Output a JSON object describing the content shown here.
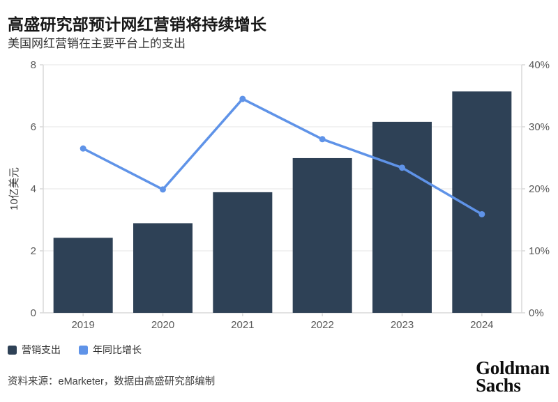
{
  "header": {
    "title": "高盛研究部预计网红营销将持续增长",
    "subtitle": "美国网红营销在主要平台上的支出"
  },
  "chart_data": {
    "type": "bar+line combo",
    "categories": [
      "2019",
      "2020",
      "2021",
      "2022",
      "2023",
      "2024"
    ],
    "series": [
      {
        "name": "营销支出",
        "type": "bar",
        "axis": "left",
        "color": "#2e4156",
        "values": [
          2.42,
          2.89,
          3.89,
          4.99,
          6.16,
          7.14
        ]
      },
      {
        "name": "年同比增长",
        "type": "line",
        "axis": "right",
        "color": "#5f93e8",
        "values": [
          26.5,
          19.9,
          34.5,
          28.0,
          23.4,
          15.9
        ]
      }
    ],
    "left_axis": {
      "label": "10亿美元",
      "min": 0,
      "max": 8,
      "tick_values": [
        0,
        2,
        4,
        6,
        8
      ],
      "tick_labels": [
        "0",
        "2",
        "4",
        "6",
        "8"
      ]
    },
    "right_axis": {
      "label": "",
      "min": 0,
      "max": 40,
      "tick_values": [
        0,
        10,
        20,
        30,
        40
      ],
      "tick_labels": [
        "0%",
        "10%",
        "20%",
        "30%",
        "40%"
      ]
    },
    "grid": true,
    "legend_position": "bottom-left"
  },
  "footer": {
    "source": "资料来源：eMarketer，数据由高盛研究部编制",
    "logo_line1": "Goldman",
    "logo_line2": "Sachs"
  },
  "colors": {
    "bar": "#2e4156",
    "line": "#5f93e8",
    "gridline": "#e4e4e4",
    "axis_line": "#d9d9d9",
    "tick_label": "#595959",
    "axis_title": "#3c3c3c"
  }
}
